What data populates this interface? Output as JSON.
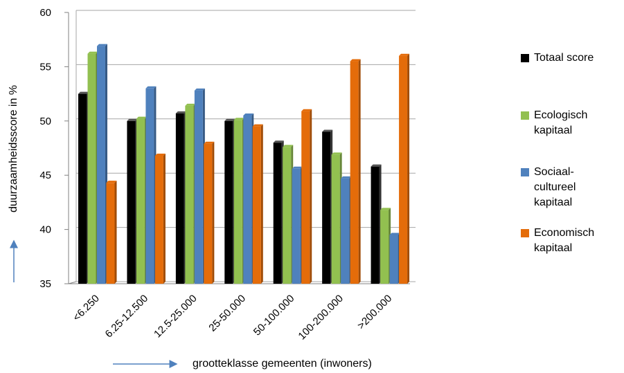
{
  "chart_data": {
    "type": "bar",
    "categories": [
      "<6.250",
      "6.25-12.500",
      "12.5-25.000",
      "25-50.000",
      "50-100.000",
      "100-200.000",
      ">200.000"
    ],
    "series": [
      {
        "name": "Totaal score",
        "color": "#000000",
        "values": [
          52.5,
          50.0,
          50.7,
          50.0,
          48.0,
          49.0,
          45.8
        ]
      },
      {
        "name": "Ecologisch kapitaal",
        "color": "#92c050",
        "values": [
          56.2,
          50.2,
          51.4,
          50.1,
          47.6,
          46.9,
          41.8
        ]
      },
      {
        "name": "Sociaal-cultureel kapitaal",
        "color": "#4f81bd",
        "values": [
          56.9,
          53.0,
          52.8,
          50.5,
          45.6,
          44.7,
          39.5
        ]
      },
      {
        "name": "Economisch kapitaal",
        "color": "#e46c0a",
        "values": [
          44.3,
          46.8,
          47.9,
          49.5,
          50.9,
          55.5,
          56.0
        ]
      }
    ],
    "ylim": [
      35,
      60
    ],
    "yticks": [
      "35",
      "40",
      "45",
      "50",
      "55",
      "60"
    ],
    "ylabel": "duurzaamheidsscore in %",
    "xlabel": "grootteklasse gemeenten (inwoners)",
    "grid": true,
    "legend_position": "right"
  },
  "legend": {
    "items": [
      {
        "label": "Totaal score",
        "color": "#000000"
      },
      {
        "label": "Ecologisch kapitaal",
        "color": "#92c050"
      },
      {
        "label": "Sociaal-cultureel kapitaal",
        "color": "#4f81bd"
      },
      {
        "label": "Economisch kapitaal",
        "color": "#e46c0a"
      }
    ]
  }
}
